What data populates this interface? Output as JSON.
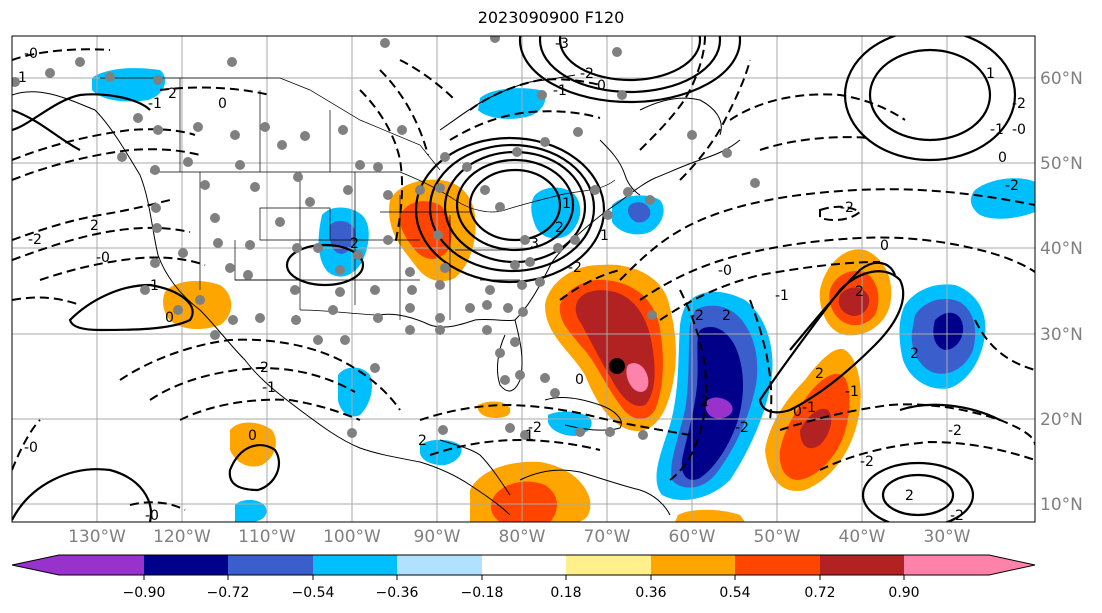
{
  "title": "2023090900 F120",
  "lat_labels": [
    "60°N",
    "50°N",
    "40°N",
    "30°N",
    "20°N",
    "10°N"
  ],
  "lon_labels": [
    "130°W",
    "120°W",
    "110°W",
    "100°W",
    "90°W",
    "80°W",
    "70°W",
    "60°W",
    "50°W",
    "40°W",
    "30°W"
  ],
  "colorbar": {
    "ticks": [
      "−0.90",
      "−0.72",
      "−0.54",
      "−0.36",
      "−0.18",
      "0.18",
      "0.36",
      "0.54",
      "0.72",
      "0.90"
    ],
    "colors": [
      "#9932cc",
      "#00008b",
      "#3a5fcd",
      "#00bfff",
      "#b0e2ff",
      "#ffffff",
      "#fff08c",
      "#ffa500",
      "#ff4500",
      "#b22222",
      "#ff82ab"
    ]
  },
  "contour_labels": [
    "-0",
    "1",
    "2",
    "0",
    "-1",
    "-2",
    "2",
    "-0",
    "1",
    "0",
    "-2",
    "-1",
    "2",
    "3",
    "-3",
    "-2",
    "-1",
    "0",
    "1",
    "2",
    "-2",
    "0",
    "-0",
    "-2",
    "2",
    "-1",
    "0",
    "-2",
    "-2",
    "2",
    "2",
    "-2",
    "-2",
    "-2",
    "-1",
    "-0",
    "0",
    "1",
    "-0",
    "-2",
    "1",
    "0",
    "-0",
    "2",
    "-2",
    "2",
    "-1",
    "0",
    "-1",
    "2",
    "1",
    "2",
    "-2"
  ]
}
